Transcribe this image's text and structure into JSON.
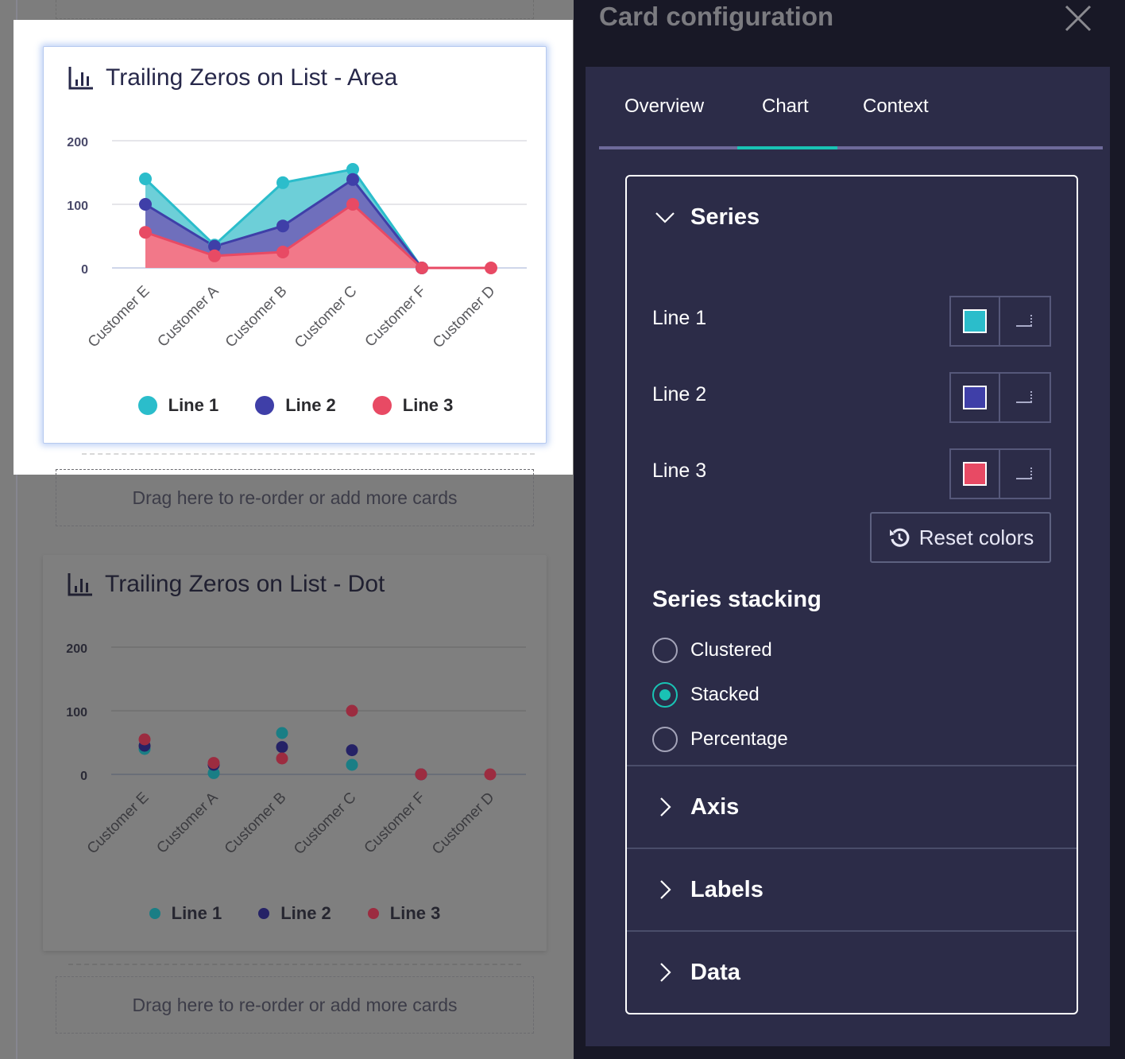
{
  "canvas": {
    "drop_zone_label": "Drag here to re-order or add more cards",
    "cards": [
      {
        "title": "Trailing Zeros on List - Area",
        "icon": "bar-chart-icon",
        "chart_type": "area",
        "y_ticks": [
          "200",
          "100",
          "0"
        ],
        "categories": [
          "Customer E",
          "Customer A",
          "Customer B",
          "Customer C",
          "Customer F",
          "Customer D"
        ],
        "legend": [
          "Line 1",
          "Line 2",
          "Line 3"
        ]
      },
      {
        "title": "Trailing Zeros on List - Dot",
        "icon": "bar-chart-icon",
        "chart_type": "scatter",
        "y_ticks": [
          "200",
          "100",
          "0"
        ],
        "categories": [
          "Customer E",
          "Customer A",
          "Customer B",
          "Customer C",
          "Customer F",
          "Customer D"
        ],
        "legend": [
          "Line 1",
          "Line 2",
          "Line 3"
        ]
      }
    ]
  },
  "panel": {
    "title": "Card configuration",
    "close_icon": "close-icon",
    "tabs": [
      {
        "label": "Overview",
        "active": false
      },
      {
        "label": "Chart",
        "active": true
      },
      {
        "label": "Context",
        "active": false
      }
    ],
    "sections": {
      "series": {
        "label": "Series",
        "expanded": true,
        "rows": [
          {
            "label": "Line 1",
            "color": "#2bbdcb"
          },
          {
            "label": "Line 2",
            "color": "#3f3fa8"
          },
          {
            "label": "Line 3",
            "color": "#e84a64"
          }
        ],
        "reset_label": "Reset colors",
        "stacking_title": "Series stacking",
        "stacking_options": [
          {
            "label": "Clustered",
            "checked": false
          },
          {
            "label": "Stacked",
            "checked": true
          },
          {
            "label": "Percentage",
            "checked": false
          }
        ]
      },
      "axis": {
        "label": "Axis",
        "expanded": false
      },
      "labels": {
        "label": "Labels",
        "expanded": false
      },
      "data": {
        "label": "Data",
        "expanded": false
      }
    }
  },
  "colors": {
    "line1": "#2bbdcb",
    "line2": "#3f3fa8",
    "line3": "#e84a64",
    "accent": "#19c3b4"
  },
  "chart_data": [
    {
      "type": "area",
      "title": "Trailing Zeros on List - Area",
      "stacking": "stacked",
      "categories": [
        "Customer E",
        "Customer A",
        "Customer B",
        "Customer C",
        "Customer F",
        "Customer D"
      ],
      "series": [
        {
          "name": "Line 1",
          "values": [
            40,
            2,
            68,
            16,
            0,
            null
          ]
        },
        {
          "name": "Line 2",
          "values": [
            44,
            15,
            41,
            39,
            0,
            null
          ]
        },
        {
          "name": "Line 3",
          "values": [
            56,
            19,
            25,
            100,
            0,
            0
          ]
        }
      ],
      "xlabel": "",
      "ylabel": "",
      "ylim": [
        0,
        200
      ],
      "y_ticks": [
        0,
        100,
        200
      ],
      "grid": true,
      "legend_position": "bottom"
    },
    {
      "type": "scatter",
      "title": "Trailing Zeros on List - Dot",
      "categories": [
        "Customer E",
        "Customer A",
        "Customer B",
        "Customer C",
        "Customer F",
        "Customer D"
      ],
      "series": [
        {
          "name": "Line 1",
          "values": [
            40,
            2,
            65,
            15,
            0,
            null
          ]
        },
        {
          "name": "Line 2",
          "values": [
            45,
            15,
            43,
            38,
            0,
            null
          ]
        },
        {
          "name": "Line 3",
          "values": [
            55,
            18,
            25,
            100,
            0,
            0
          ]
        }
      ],
      "xlabel": "",
      "ylabel": "",
      "ylim": [
        0,
        200
      ],
      "y_ticks": [
        0,
        100,
        200
      ],
      "grid": true,
      "legend_position": "bottom"
    }
  ]
}
